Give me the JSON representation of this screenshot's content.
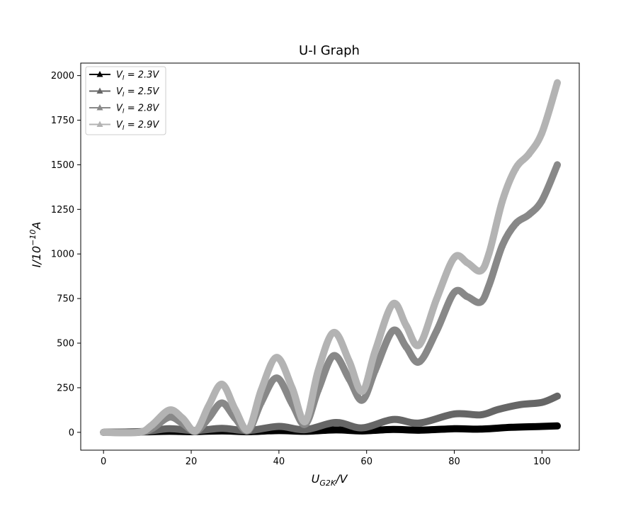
{
  "chart_data": {
    "type": "line",
    "title": "U-I Graph",
    "xlabel_parts": {
      "base": "U",
      "sub": "G2K",
      "suffix": "/V"
    },
    "ylabel_parts": {
      "base": "I/10",
      "sup": "−10",
      "suffix": "A"
    },
    "xlim": [
      -5.2,
      108.5
    ],
    "ylim": [
      -100,
      2070
    ],
    "xticks": [
      0,
      20,
      40,
      60,
      80,
      100
    ],
    "yticks": [
      0,
      250,
      500,
      750,
      1000,
      1250,
      1500,
      1750,
      2000
    ],
    "grid": false,
    "legend_position": "top-left",
    "marker": "triangle",
    "series": [
      {
        "name": "V_I = 2.3V",
        "legend": {
          "base": "V",
          "sub": "I",
          "eq": " = 2.3V"
        },
        "color": "#000000",
        "x": [
          0,
          5,
          10,
          15,
          20,
          27,
          33,
          40,
          46,
          53,
          59,
          66,
          72,
          80,
          86,
          93,
          100,
          103.5
        ],
        "y": [
          0,
          1,
          3,
          6,
          4,
          8,
          4,
          10,
          6,
          14,
          8,
          16,
          12,
          20,
          18,
          28,
          33,
          36
        ]
      },
      {
        "name": "V_I = 2.5V",
        "legend": {
          "base": "V",
          "sub": "I",
          "eq": " = 2.5V"
        },
        "color": "#666666",
        "x": [
          0,
          5,
          10,
          15,
          21,
          27,
          33,
          40,
          46,
          53,
          59,
          66,
          72,
          80,
          86,
          90,
          95,
          100,
          103.5
        ],
        "y": [
          0,
          2,
          6,
          20,
          10,
          22,
          10,
          33,
          15,
          55,
          25,
          72,
          52,
          103,
          98,
          128,
          155,
          168,
          203
        ]
      },
      {
        "name": "V_I = 2.8V",
        "legend": {
          "base": "V",
          "sub": "I",
          "eq": " = 2.8V"
        },
        "color": "#888888",
        "x": [
          0,
          8,
          11,
          15,
          18,
          21,
          24,
          27,
          30,
          33,
          36,
          39.5,
          43,
          46,
          49,
          52.5,
          56,
          59,
          62,
          66,
          69,
          72,
          76,
          80,
          83,
          86,
          88,
          91,
          94,
          97,
          100,
          103.5
        ],
        "y": [
          0,
          0,
          20,
          85,
          50,
          5,
          80,
          165,
          80,
          10,
          170,
          305,
          160,
          45,
          240,
          430,
          300,
          180,
          350,
          570,
          480,
          395,
          570,
          785,
          760,
          730,
          830,
          1050,
          1170,
          1220,
          1300,
          1500
        ]
      },
      {
        "name": "V_I = 2.9V",
        "legend": {
          "base": "V",
          "sub": "I",
          "eq": " = 2.9V"
        },
        "color": "#b3b3b3",
        "x": [
          0,
          8,
          11,
          15,
          18,
          21,
          24,
          27,
          30,
          33,
          36,
          39.5,
          43,
          46,
          49,
          52.5,
          56,
          59,
          62,
          66,
          69,
          72,
          76,
          80,
          83,
          86,
          88,
          91,
          94,
          97,
          100,
          103.5
        ],
        "y": [
          0,
          0,
          40,
          125,
          80,
          8,
          150,
          270,
          130,
          15,
          240,
          420,
          250,
          60,
          350,
          560,
          400,
          230,
          460,
          720,
          600,
          490,
          750,
          980,
          950,
          905,
          1010,
          1300,
          1480,
          1560,
          1680,
          1960
        ]
      }
    ]
  }
}
